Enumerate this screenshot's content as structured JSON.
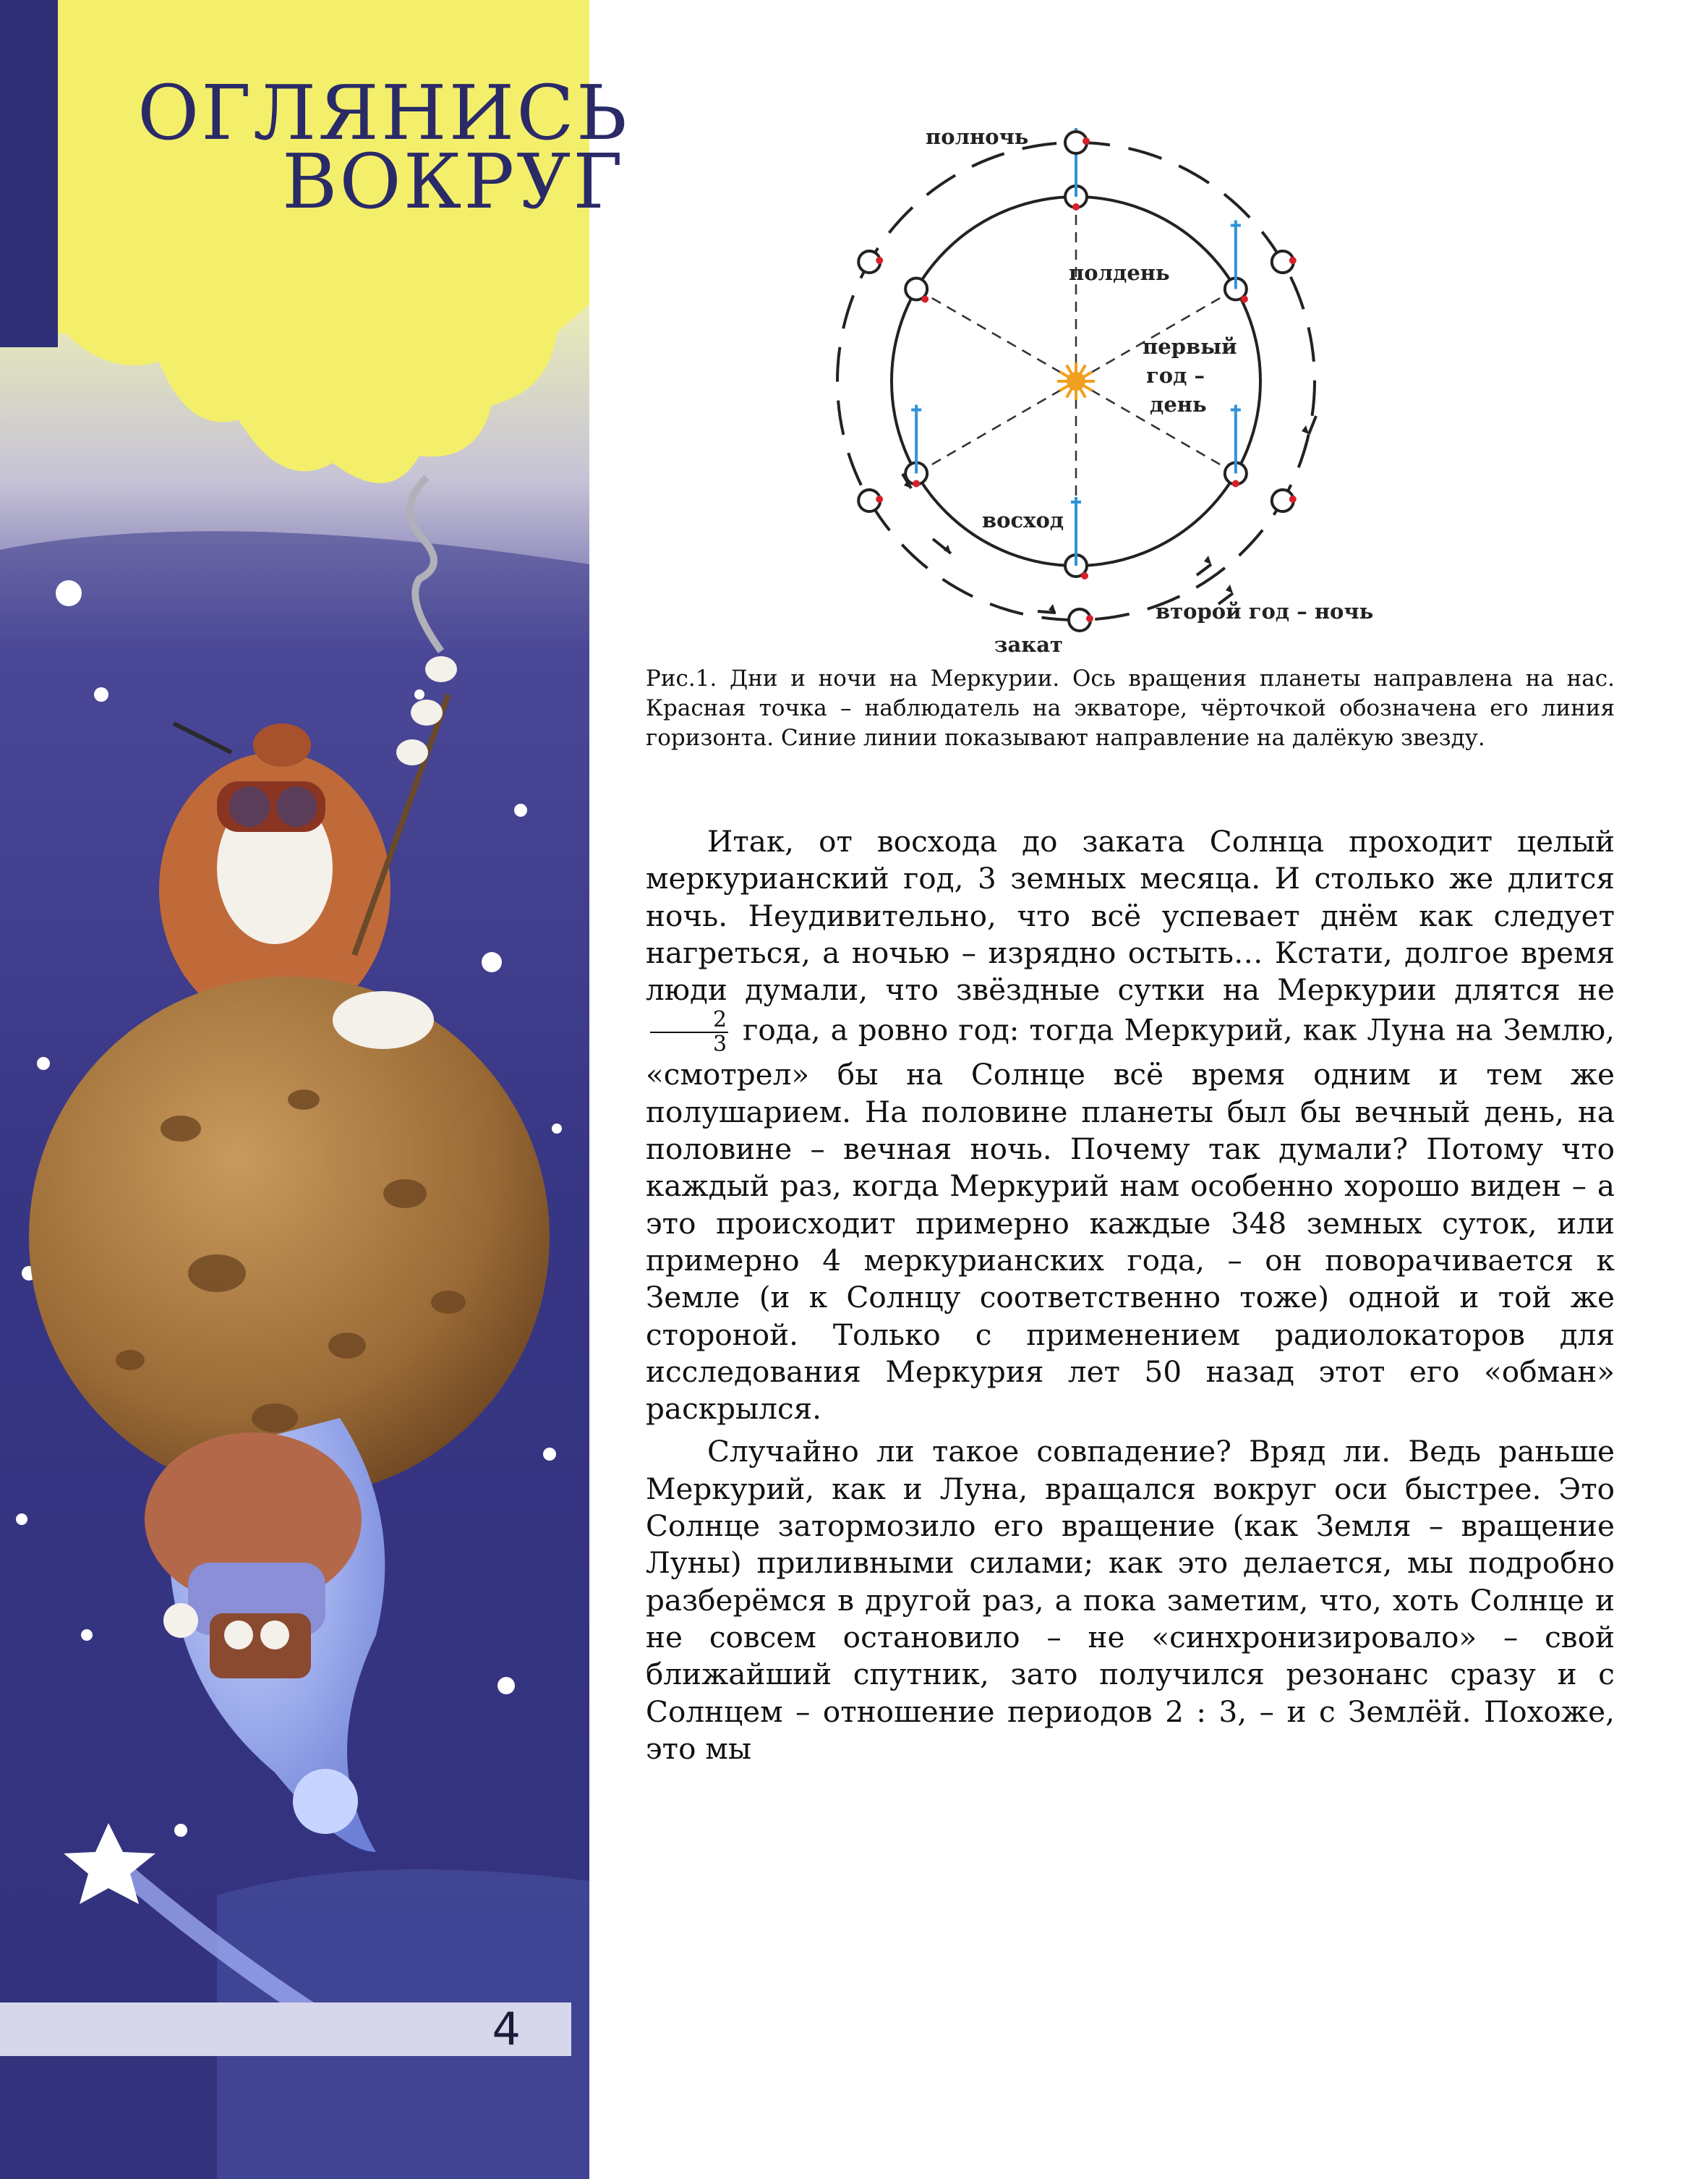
{
  "header": {
    "title_line1": "ОГЛЯНИСЬ",
    "title_line2": "ВОКРУГ"
  },
  "figure": {
    "labels": {
      "midnight": "полночь",
      "noon": "полдень",
      "first_year_day": [
        "первый",
        "год –",
        "день"
      ],
      "sunrise": "восход",
      "sunset": "закат",
      "second_year_night": "второй год – ночь"
    },
    "colors": {
      "observer": "#d8202a",
      "star_direction": "#2e93d8",
      "sun": "#f0a020"
    }
  },
  "caption": "Рис.1. Дни и ночи на Меркурии. Ось вращения планеты направлена на нас. Красная точка – наблюдатель на экваторе, чёрточкой обозначена его линия горизонта. Синие линии показывают направление на далёкую звезду.",
  "body": {
    "p1_before_fraction": "Итак, от восхода до заката Солнца проходит целый меркурианский год, 3 земных месяца. И столько же длится ночь. Неудивительно, что всё успевает днём как следует нагреться, а ночью – изрядно остыть… Кстати, долгое время люди думали, что звёздные сутки на Меркурии длятся не",
    "fraction_numerator": "2",
    "fraction_denominator": "3",
    "p1_after_fraction": "года, а ровно год: тогда Меркурий, как Луна на Землю, «смотрел» бы на Солнце всё время одним и тем же полушарием. На половине планеты был бы вечный день, на половине – вечная ночь. Почему так думали? Потому что каждый раз, когда Меркурий нам особенно хорошо виден – а это происходит примерно каждые 348 земных суток, или примерно 4 меркурианских года, – он поворачивается к Земле (и к Солнцу соответственно тоже) одной и той же стороной. Только с применением радиолокаторов для исследования Меркурия лет 50 назад этот его «обман» раскрылся.",
    "p2": "Случайно ли такое совпадение? Вряд ли. Ведь раньше Меркурий, как и Луна, вращался вокруг оси быстрее. Это Солнце затормозило его вращение (как Земля – вращение Луны) приливными силами; как это делается, мы подробно разберёмся в другой раз, а пока заметим, что, хоть Солнце и не совсем остановило – не «синхронизировало» – свой ближайший спутник, зато получился резонанс сразу и с Солнцем – отношение периодов 2 : 3, – и с Землёй. Похоже, это мы"
  },
  "page": {
    "number": "4"
  },
  "art_colors": {
    "sun": "#f4ef6a",
    "sky_top": "#f6f8c8",
    "sky_night": "#3b3a8c",
    "header_band": "#2f2f78"
  }
}
